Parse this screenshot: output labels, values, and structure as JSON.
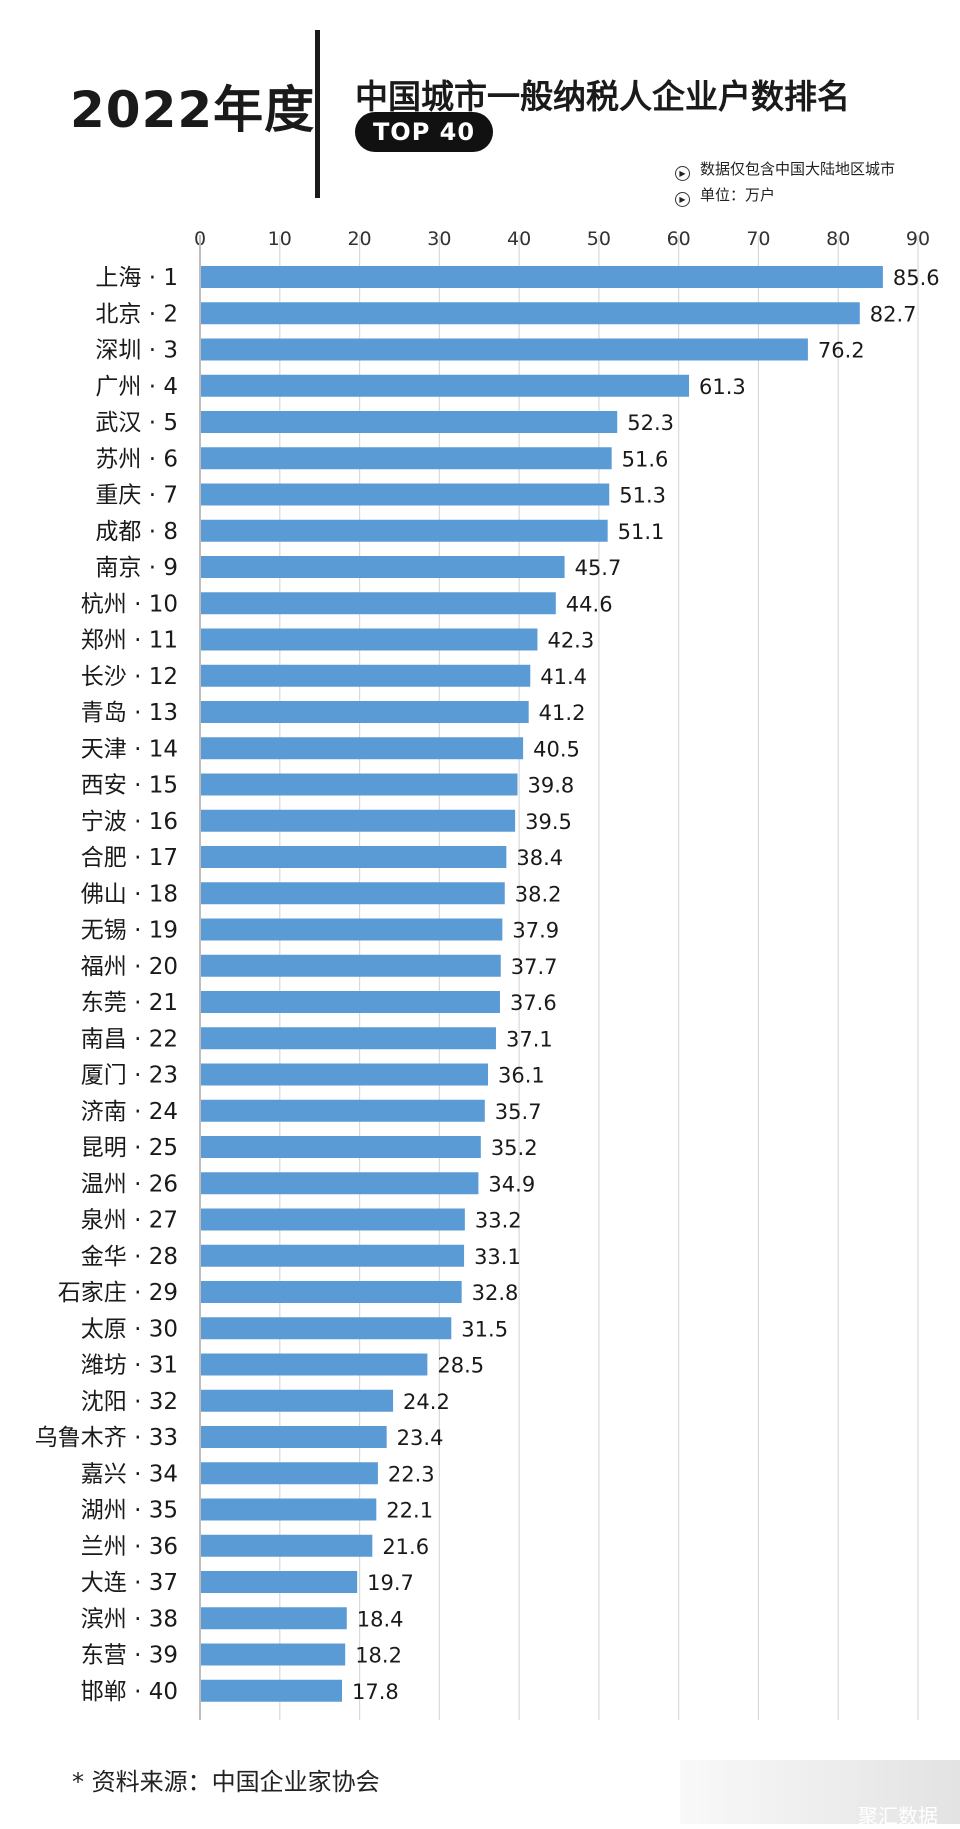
{
  "header": {
    "year_label": "2022年度",
    "title": "中国城市一般纳税人企业户数排名",
    "badge": "TOP 40",
    "notes": [
      "数据仅包含中国大陆地区城市",
      "单位：万户"
    ]
  },
  "footer": {
    "source": "* 资料来源：中国企业家协会"
  },
  "watermark": {
    "text": "聚汇数据"
  },
  "colors": {
    "bar": "#5b9bd5",
    "grid": "#d9d9d9",
    "text": "#1a1a1a"
  },
  "chart_data": {
    "type": "bar",
    "orientation": "horizontal",
    "title": "中国城市一般纳税人企业户数排名",
    "unit": "万户",
    "xlim": [
      0,
      90
    ],
    "xticks": [
      0,
      10,
      20,
      30,
      40,
      50,
      60,
      70,
      80,
      90
    ],
    "grid": true,
    "categories": [
      "上海 · 1",
      "北京 · 2",
      "深圳 · 3",
      "广州 · 4",
      "武汉 · 5",
      "苏州 · 6",
      "重庆 · 7",
      "成都 · 8",
      "南京 · 9",
      "杭州 · 10",
      "郑州 · 11",
      "长沙 · 12",
      "青岛 · 13",
      "天津 · 14",
      "西安 · 15",
      "宁波 · 16",
      "合肥 · 17",
      "佛山 · 18",
      "无锡 · 19",
      "福州 · 20",
      "东莞 · 21",
      "南昌 · 22",
      "厦门 · 23",
      "济南 · 24",
      "昆明 · 25",
      "温州 · 26",
      "泉州 · 27",
      "金华 · 28",
      "石家庄 · 29",
      "太原 · 30",
      "潍坊 · 31",
      "沈阳 · 32",
      "乌鲁木齐 · 33",
      "嘉兴 · 34",
      "湖州 · 35",
      "兰州 · 36",
      "大连 · 37",
      "滨州 · 38",
      "东营 · 39",
      "邯郸 · 40"
    ],
    "values": [
      85.6,
      82.7,
      76.2,
      61.3,
      52.3,
      51.6,
      51.3,
      51.1,
      45.7,
      44.6,
      42.3,
      41.4,
      41.2,
      40.5,
      39.8,
      39.5,
      38.4,
      38.2,
      37.9,
      37.7,
      37.6,
      37.1,
      36.1,
      35.7,
      35.2,
      34.9,
      33.2,
      33.1,
      32.8,
      31.5,
      28.5,
      24.2,
      23.4,
      22.3,
      22.1,
      21.6,
      19.7,
      18.4,
      18.2,
      17.8
    ]
  }
}
